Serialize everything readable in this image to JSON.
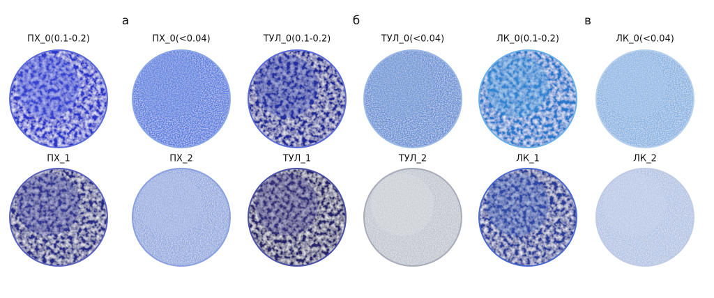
{
  "groups": [
    {
      "label": "а"
    },
    {
      "label": "б"
    },
    {
      "label": "в"
    }
  ],
  "samples": [
    {
      "label": "ПХ_0(0.1-0.2)"
    },
    {
      "label": "ПХ_0(<0.04)"
    },
    {
      "label": "ТУЛ_0(0.1-0.2)"
    },
    {
      "label": "ТУЛ_0(<0.04)"
    },
    {
      "label": "ЛК_0(0.1-0.2)"
    },
    {
      "label": "ЛК_0(<0.04)"
    },
    {
      "label": "ПХ_1"
    },
    {
      "label": "ПХ_2"
    },
    {
      "label": "ТУЛ_1"
    },
    {
      "label": "ТУЛ_2"
    },
    {
      "label": "ЛК_1"
    },
    {
      "label": "ЛК_2"
    }
  ]
}
